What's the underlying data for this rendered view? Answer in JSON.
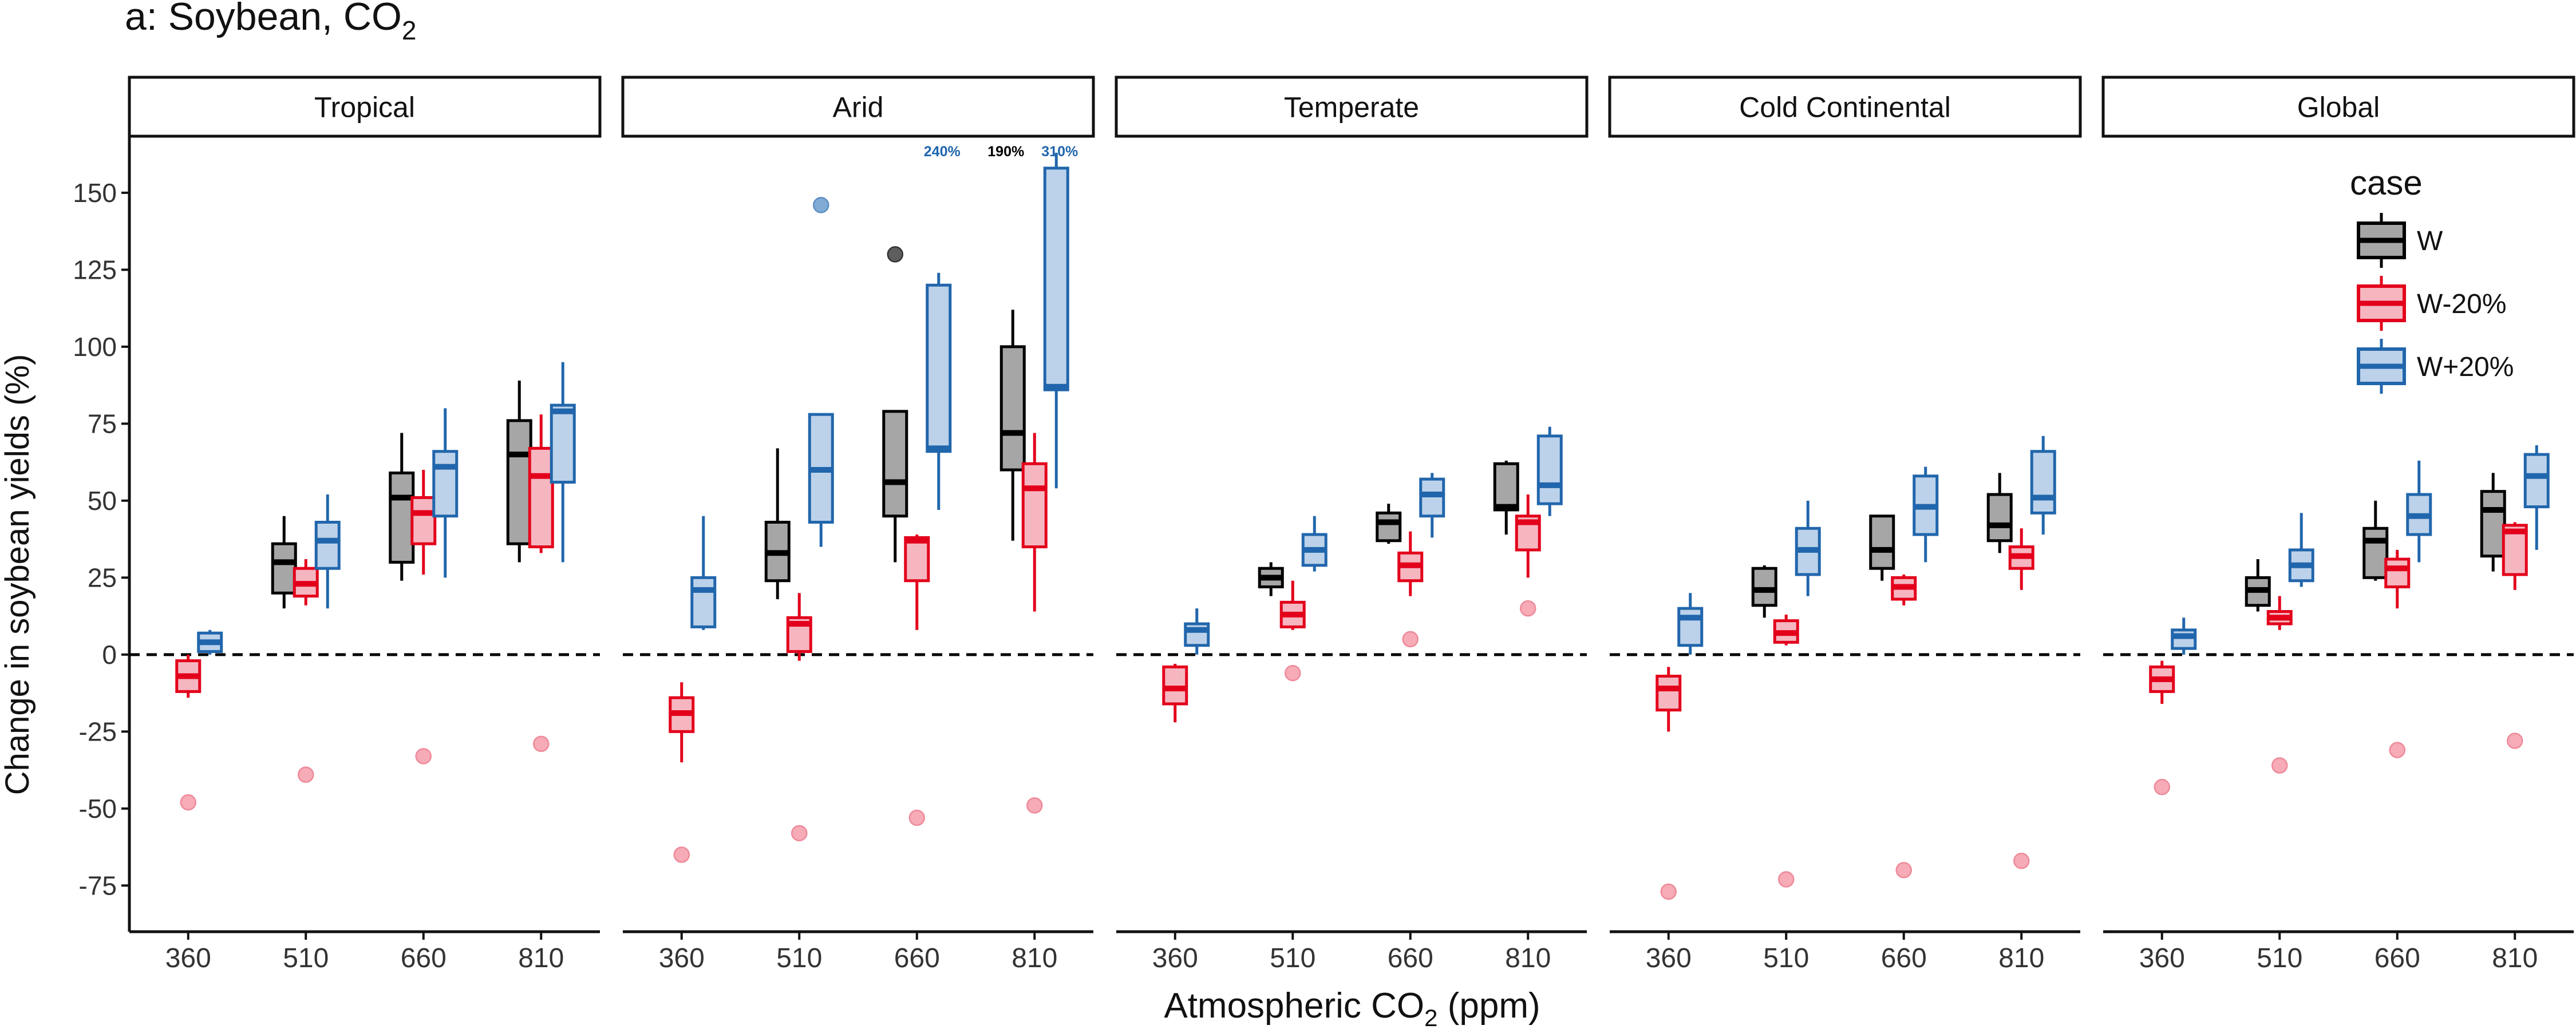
{
  "chart_data": {
    "type": "boxplot",
    "title_prefix": "a: Soybean, CO",
    "title_sub": "2",
    "xlabel_prefix": "Atmospheric CO",
    "xlabel_sub": "2",
    "xlabel_suffix": " (ppm)",
    "ylabel": "Change in soybean yields (%)",
    "ylim": [
      -90,
      168
    ],
    "y_ticks": [
      150,
      125,
      100,
      75,
      50,
      25,
      0,
      -25,
      -50,
      -75
    ],
    "y_tick_labels": [
      "150",
      "125",
      "100",
      "75",
      "50",
      "25",
      "0",
      "-25",
      "-50",
      "-75"
    ],
    "x_categories": [
      "360",
      "510",
      "660",
      "810"
    ],
    "reference_line": 0,
    "legend": {
      "title": "case",
      "position": "top-right",
      "entries": [
        {
          "label": "W",
          "stroke": "#000000",
          "fill": "#a6a6a6"
        },
        {
          "label": "W-20%",
          "stroke": "#e3001b",
          "fill": "#f6b6c0"
        },
        {
          "label": "W+20%",
          "stroke": "#2166ac",
          "fill": "#bcd2ea"
        }
      ]
    },
    "panels": [
      {
        "name": "Tropical",
        "series": {
          "W": [
            null,
            {
              "min": 15,
              "q1": 20,
              "median": 30,
              "q3": 36,
              "max": 45
            },
            {
              "min": 24,
              "q1": 30,
              "median": 51,
              "q3": 59,
              "max": 72
            },
            {
              "min": 30,
              "q1": 36,
              "median": 65,
              "q3": 76,
              "max": 89
            }
          ],
          "W-20%": [
            {
              "min": -14,
              "q1": -12,
              "median": -7,
              "q3": -2,
              "max": 0
            },
            {
              "min": 16,
              "q1": 19,
              "median": 23,
              "q3": 28,
              "max": 31
            },
            {
              "min": 26,
              "q1": 36,
              "median": 46,
              "q3": 51,
              "max": 60
            },
            {
              "min": 33,
              "q1": 35,
              "median": 58,
              "q3": 67,
              "max": 78
            }
          ],
          "W+20%": [
            {
              "min": 0,
              "q1": 1,
              "median": 4,
              "q3": 7,
              "max": 8
            },
            {
              "min": 15,
              "q1": 28,
              "median": 37,
              "q3": 43,
              "max": 52
            },
            {
              "min": 25,
              "q1": 45,
              "median": 61,
              "q3": 66,
              "max": 80
            },
            {
              "min": 30,
              "q1": 56,
              "median": 79,
              "q3": 81,
              "max": 95
            }
          ]
        },
        "outliers": [
          {
            "case": "W-20%",
            "x": "360",
            "y": -48
          },
          {
            "case": "W-20%",
            "x": "510",
            "y": -39
          },
          {
            "case": "W-20%",
            "x": "660",
            "y": -33
          },
          {
            "case": "W-20%",
            "x": "810",
            "y": -29
          }
        ]
      },
      {
        "name": "Arid",
        "series": {
          "W": [
            null,
            {
              "min": 18,
              "q1": 24,
              "median": 33,
              "q3": 43,
              "max": 67
            },
            {
              "min": 30,
              "q1": 45,
              "median": 56,
              "q3": 79,
              "max": 79
            },
            {
              "min": 37,
              "q1": 60,
              "median": 72,
              "q3": 100,
              "max": 112
            }
          ],
          "W-20%": [
            {
              "min": -35,
              "q1": -25,
              "median": -19,
              "q3": -14,
              "max": -9
            },
            {
              "min": -2,
              "q1": 1,
              "median": 10,
              "q3": 12,
              "max": 20
            },
            {
              "min": 8,
              "q1": 24,
              "median": 37,
              "q3": 38,
              "max": 39
            },
            {
              "min": 14,
              "q1": 35,
              "median": 54,
              "q3": 62,
              "max": 72
            }
          ],
          "W+20%": [
            {
              "min": 8,
              "q1": 9,
              "median": 21,
              "q3": 25,
              "max": 45
            },
            {
              "min": 35,
              "q1": 43,
              "median": 60,
              "q3": 78,
              "max": 78
            },
            {
              "min": 47,
              "q1": 66,
              "median": 67,
              "q3": 120,
              "max": 124
            },
            {
              "min": 54,
              "q1": 86,
              "median": 87,
              "q3": 158,
              "max": 163
            }
          ]
        },
        "outliers": [
          {
            "case": "W-20%",
            "x": "360",
            "y": -65
          },
          {
            "case": "W-20%",
            "x": "510",
            "y": -58
          },
          {
            "case": "W-20%",
            "x": "660",
            "y": -53
          },
          {
            "case": "W-20%",
            "x": "810",
            "y": -49
          },
          {
            "case": "W+20%",
            "x": "510",
            "y": 146
          },
          {
            "case": "W",
            "x": "660",
            "y": 130
          }
        ],
        "annotations": [
          {
            "text": "240%",
            "case": "W+20%",
            "x": "660"
          },
          {
            "text": "190%",
            "case": "W",
            "x": "810"
          },
          {
            "text": "310%",
            "case": "W+20%",
            "x": "810"
          }
        ]
      },
      {
        "name": "Temperate",
        "series": {
          "W": [
            null,
            {
              "min": 19,
              "q1": 22,
              "median": 25,
              "q3": 28,
              "max": 30
            },
            {
              "min": 36,
              "q1": 37,
              "median": 43,
              "q3": 46,
              "max": 49
            },
            {
              "min": 39,
              "q1": 47,
              "median": 48,
              "q3": 62,
              "max": 63
            }
          ],
          "W-20%": [
            {
              "min": -22,
              "q1": -16,
              "median": -11,
              "q3": -4,
              "max": -3
            },
            {
              "min": 8,
              "q1": 9,
              "median": 13,
              "q3": 17,
              "max": 24
            },
            {
              "min": 19,
              "q1": 24,
              "median": 29,
              "q3": 33,
              "max": 40
            },
            {
              "min": 25,
              "q1": 34,
              "median": 43,
              "q3": 45,
              "max": 52
            }
          ],
          "W+20%": [
            {
              "min": 0,
              "q1": 3,
              "median": 8,
              "q3": 10,
              "max": 15
            },
            {
              "min": 27,
              "q1": 29,
              "median": 34,
              "q3": 39,
              "max": 45
            },
            {
              "min": 38,
              "q1": 45,
              "median": 52,
              "q3": 57,
              "max": 59
            },
            {
              "min": 45,
              "q1": 49,
              "median": 55,
              "q3": 71,
              "max": 74
            }
          ]
        },
        "outliers": [
          {
            "case": "W-20%",
            "x": "510",
            "y": -6
          },
          {
            "case": "W-20%",
            "x": "660",
            "y": 5
          },
          {
            "case": "W-20%",
            "x": "810",
            "y": 15
          }
        ]
      },
      {
        "name": "Cold Continental",
        "series": {
          "W": [
            null,
            {
              "min": 12,
              "q1": 16,
              "median": 21,
              "q3": 28,
              "max": 29
            },
            {
              "min": 24,
              "q1": 28,
              "median": 34,
              "q3": 45,
              "max": 45
            },
            {
              "min": 33,
              "q1": 37,
              "median": 42,
              "q3": 52,
              "max": 59
            }
          ],
          "W-20%": [
            {
              "min": -25,
              "q1": -18,
              "median": -11,
              "q3": -7,
              "max": -4
            },
            {
              "min": 3,
              "q1": 4,
              "median": 7,
              "q3": 11,
              "max": 13
            },
            {
              "min": 16,
              "q1": 18,
              "median": 22,
              "q3": 25,
              "max": 26
            },
            {
              "min": 21,
              "q1": 28,
              "median": 32,
              "q3": 35,
              "max": 41
            }
          ],
          "W+20%": [
            {
              "min": 0,
              "q1": 3,
              "median": 12,
              "q3": 15,
              "max": 20
            },
            {
              "min": 19,
              "q1": 26,
              "median": 34,
              "q3": 41,
              "max": 50
            },
            {
              "min": 30,
              "q1": 39,
              "median": 48,
              "q3": 58,
              "max": 61
            },
            {
              "min": 39,
              "q1": 46,
              "median": 51,
              "q3": 66,
              "max": 71
            }
          ]
        },
        "outliers": [
          {
            "case": "W-20%",
            "x": "360",
            "y": -77
          },
          {
            "case": "W-20%",
            "x": "510",
            "y": -73
          },
          {
            "case": "W-20%",
            "x": "660",
            "y": -70
          },
          {
            "case": "W-20%",
            "x": "810",
            "y": -67
          }
        ]
      },
      {
        "name": "Global",
        "series": {
          "W": [
            null,
            {
              "min": 14,
              "q1": 16,
              "median": 21,
              "q3": 25,
              "max": 31
            },
            {
              "min": 24,
              "q1": 25,
              "median": 37,
              "q3": 41,
              "max": 50
            },
            {
              "min": 27,
              "q1": 32,
              "median": 47,
              "q3": 53,
              "max": 59
            }
          ],
          "W-20%": [
            {
              "min": -16,
              "q1": -12,
              "median": -8,
              "q3": -4,
              "max": -2
            },
            {
              "min": 8,
              "q1": 10,
              "median": 12,
              "q3": 14,
              "max": 19
            },
            {
              "min": 15,
              "q1": 22,
              "median": 28,
              "q3": 31,
              "max": 34
            },
            {
              "min": 21,
              "q1": 26,
              "median": 40,
              "q3": 42,
              "max": 43
            }
          ],
          "W+20%": [
            {
              "min": 0,
              "q1": 2,
              "median": 6,
              "q3": 8,
              "max": 12
            },
            {
              "min": 22,
              "q1": 24,
              "median": 29,
              "q3": 34,
              "max": 46
            },
            {
              "min": 30,
              "q1": 39,
              "median": 45,
              "q3": 52,
              "max": 63
            },
            {
              "min": 34,
              "q1": 48,
              "median": 58,
              "q3": 65,
              "max": 68
            }
          ]
        },
        "outliers": [
          {
            "case": "W-20%",
            "x": "360",
            "y": -43
          },
          {
            "case": "W-20%",
            "x": "510",
            "y": -36
          },
          {
            "case": "W-20%",
            "x": "660",
            "y": -31
          },
          {
            "case": "W-20%",
            "x": "810",
            "y": -28
          }
        ]
      }
    ]
  }
}
